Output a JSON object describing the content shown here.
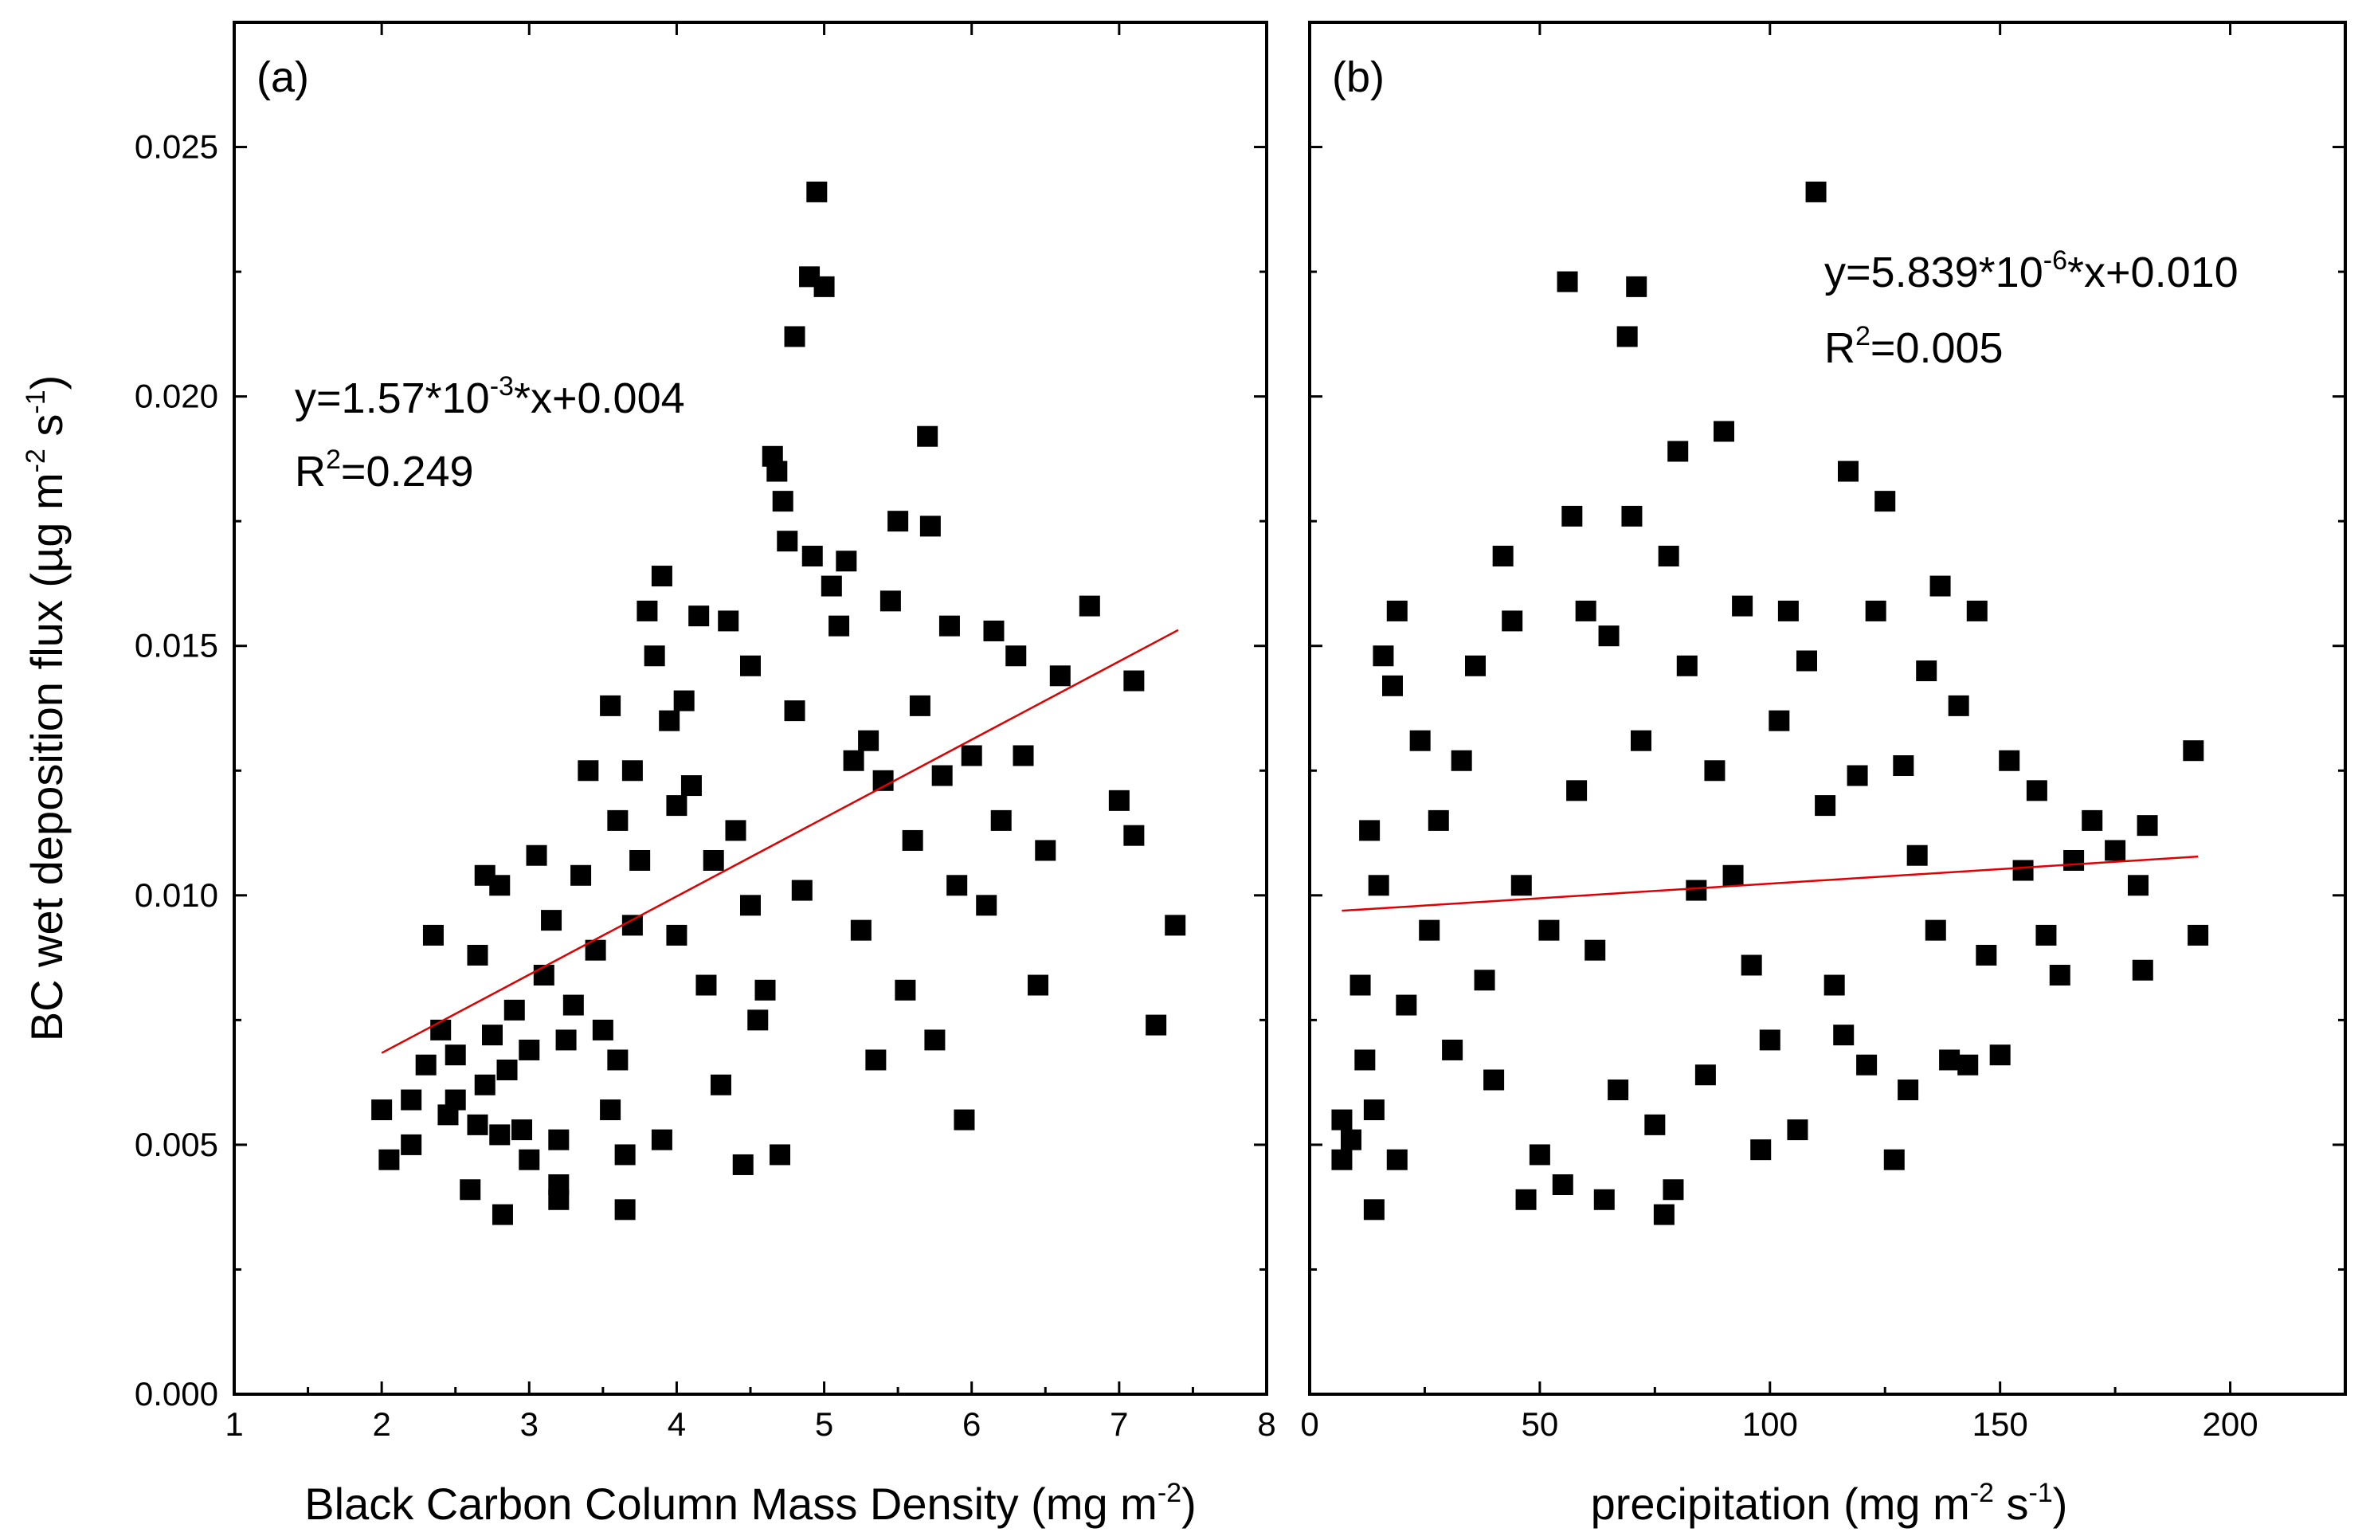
{
  "y_label": {
    "main": "BC wet deposition flux (µg m",
    "sup1": "-2",
    "mid": " s",
    "sup2": "-1",
    "end": ")"
  },
  "colors": {
    "marker": "#000000",
    "fit_line": "#e00000",
    "axes": "#000000",
    "background": "#ffffff"
  },
  "chart_data": [
    {
      "type": "scatter",
      "panel_label": "(a)",
      "xlabel": {
        "main": "Black Carbon Column Mass Density (mg m",
        "sup": "-2",
        "end": ")"
      },
      "xlim": [
        1,
        8
      ],
      "ylim": [
        0.0,
        0.0275
      ],
      "x_ticks": [
        1,
        2,
        3,
        4,
        5,
        6,
        7,
        8
      ],
      "x_tick_labels": [
        "1",
        "2",
        "3",
        "4",
        "5",
        "6",
        "7",
        "8"
      ],
      "y_ticks": [
        0.0,
        0.005,
        0.01,
        0.015,
        0.02,
        0.025
      ],
      "y_tick_labels": [
        "0.000",
        "0.005",
        "0.010",
        "0.015",
        "0.020",
        "0.025"
      ],
      "equation": {
        "pre": "y=1.57*10",
        "sup": "-3",
        "post": "*x+0.004"
      },
      "r2": {
        "pre": "R",
        "sup": "2",
        "post": "=0.249"
      },
      "fit": {
        "slope": 0.00157,
        "intercept": 0.0037,
        "x_range": [
          2.0,
          7.4
        ]
      },
      "points": [
        [
          2.0,
          0.0057
        ],
        [
          2.05,
          0.0047
        ],
        [
          2.2,
          0.0059
        ],
        [
          2.2,
          0.005
        ],
        [
          2.3,
          0.0066
        ],
        [
          2.35,
          0.0092
        ],
        [
          2.4,
          0.0073
        ],
        [
          2.45,
          0.0056
        ],
        [
          2.5,
          0.0068
        ],
        [
          2.5,
          0.0059
        ],
        [
          2.6,
          0.0041
        ],
        [
          2.65,
          0.0054
        ],
        [
          2.65,
          0.0088
        ],
        [
          2.7,
          0.0104
        ],
        [
          2.7,
          0.0062
        ],
        [
          2.75,
          0.0072
        ],
        [
          2.8,
          0.0102
        ],
        [
          2.8,
          0.0052
        ],
        [
          2.82,
          0.0036
        ],
        [
          2.85,
          0.0065
        ],
        [
          2.9,
          0.0077
        ],
        [
          2.95,
          0.0053
        ],
        [
          3.0,
          0.0047
        ],
        [
          3.0,
          0.0069
        ],
        [
          3.05,
          0.0108
        ],
        [
          3.1,
          0.0084
        ],
        [
          3.15,
          0.0095
        ],
        [
          3.2,
          0.0042
        ],
        [
          3.2,
          0.0039
        ],
        [
          3.2,
          0.0051
        ],
        [
          3.25,
          0.0071
        ],
        [
          3.3,
          0.0078
        ],
        [
          3.35,
          0.0104
        ],
        [
          3.4,
          0.0125
        ],
        [
          3.45,
          0.0089
        ],
        [
          3.5,
          0.0073
        ],
        [
          3.55,
          0.0138
        ],
        [
          3.55,
          0.0057
        ],
        [
          3.6,
          0.0067
        ],
        [
          3.6,
          0.0115
        ],
        [
          3.65,
          0.0037
        ],
        [
          3.65,
          0.0048
        ],
        [
          3.7,
          0.0094
        ],
        [
          3.7,
          0.0125
        ],
        [
          3.75,
          0.0107
        ],
        [
          3.8,
          0.0157
        ],
        [
          3.85,
          0.0148
        ],
        [
          3.9,
          0.0164
        ],
        [
          3.9,
          0.0051
        ],
        [
          3.95,
          0.0135
        ],
        [
          4.0,
          0.0118
        ],
        [
          4.0,
          0.0092
        ],
        [
          4.05,
          0.0139
        ],
        [
          4.1,
          0.0122
        ],
        [
          4.15,
          0.0156
        ],
        [
          4.2,
          0.0082
        ],
        [
          4.25,
          0.0107
        ],
        [
          4.3,
          0.0062
        ],
        [
          4.35,
          0.0155
        ],
        [
          4.4,
          0.0113
        ],
        [
          4.45,
          0.0046
        ],
        [
          4.5,
          0.0146
        ],
        [
          4.5,
          0.0098
        ],
        [
          4.55,
          0.0075
        ],
        [
          4.6,
          0.0081
        ],
        [
          4.65,
          0.0188
        ],
        [
          4.68,
          0.0185
        ],
        [
          4.7,
          0.0048
        ],
        [
          4.72,
          0.0179
        ],
        [
          4.75,
          0.0171
        ],
        [
          4.8,
          0.0212
        ],
        [
          4.8,
          0.0137
        ],
        [
          4.85,
          0.0101
        ],
        [
          4.9,
          0.0224
        ],
        [
          4.92,
          0.0168
        ],
        [
          4.95,
          0.0241
        ],
        [
          5.0,
          0.0222
        ],
        [
          5.05,
          0.0162
        ],
        [
          5.1,
          0.0154
        ],
        [
          5.15,
          0.0167
        ],
        [
          5.2,
          0.0127
        ],
        [
          5.25,
          0.0093
        ],
        [
          5.3,
          0.0131
        ],
        [
          5.35,
          0.0067
        ],
        [
          5.4,
          0.0123
        ],
        [
          5.45,
          0.0159
        ],
        [
          5.5,
          0.0175
        ],
        [
          5.55,
          0.0081
        ],
        [
          5.6,
          0.0111
        ],
        [
          5.65,
          0.0138
        ],
        [
          5.7,
          0.0192
        ],
        [
          5.72,
          0.0174
        ],
        [
          5.75,
          0.0071
        ],
        [
          5.8,
          0.0124
        ],
        [
          5.85,
          0.0154
        ],
        [
          5.9,
          0.0102
        ],
        [
          5.95,
          0.0055
        ],
        [
          6.0,
          0.0128
        ],
        [
          6.1,
          0.0098
        ],
        [
          6.15,
          0.0153
        ],
        [
          6.2,
          0.0115
        ],
        [
          6.3,
          0.0148
        ],
        [
          6.35,
          0.0128
        ],
        [
          6.45,
          0.0082
        ],
        [
          6.5,
          0.0109
        ],
        [
          6.6,
          0.0144
        ],
        [
          6.8,
          0.0158
        ],
        [
          7.0,
          0.0119
        ],
        [
          7.1,
          0.0143
        ],
        [
          7.1,
          0.0112
        ],
        [
          7.25,
          0.0074
        ],
        [
          7.38,
          0.0094
        ]
      ]
    },
    {
      "type": "scatter",
      "panel_label": "(b)",
      "xlabel": {
        "main": "precipitation (mg m",
        "sup1": "-2",
        "mid": " s",
        "sup2": "-1",
        "end": ")"
      },
      "xlim": [
        0,
        225
      ],
      "ylim": [
        0.0,
        0.0275
      ],
      "x_ticks": [
        0,
        50,
        100,
        150,
        200
      ],
      "x_tick_labels": [
        "0",
        "50",
        "100",
        "150",
        "200"
      ],
      "y_ticks": [
        0.0,
        0.005,
        0.01,
        0.015,
        0.02,
        0.025
      ],
      "equation": {
        "pre": "y=5.839*10",
        "sup": "-6",
        "post": "*x+0.010"
      },
      "r2": {
        "pre": "R",
        "sup": "2",
        "post": "=0.005"
      },
      "fit": {
        "slope": 5.839e-06,
        "intercept": 0.00965,
        "x_range": [
          7,
          193
        ]
      },
      "points": [
        [
          7,
          0.0047
        ],
        [
          7,
          0.0055
        ],
        [
          9,
          0.0051
        ],
        [
          11,
          0.0082
        ],
        [
          12,
          0.0067
        ],
        [
          13,
          0.0113
        ],
        [
          14,
          0.0037
        ],
        [
          14,
          0.0057
        ],
        [
          15,
          0.0102
        ],
        [
          16,
          0.0148
        ],
        [
          18,
          0.0142
        ],
        [
          19,
          0.0157
        ],
        [
          19,
          0.0047
        ],
        [
          21,
          0.0078
        ],
        [
          24,
          0.0131
        ],
        [
          26,
          0.0093
        ],
        [
          28,
          0.0115
        ],
        [
          31,
          0.0069
        ],
        [
          33,
          0.0127
        ],
        [
          36,
          0.0146
        ],
        [
          38,
          0.0083
        ],
        [
          40,
          0.0063
        ],
        [
          42,
          0.0168
        ],
        [
          44,
          0.0155
        ],
        [
          46,
          0.0102
        ],
        [
          47,
          0.0039
        ],
        [
          50,
          0.0048
        ],
        [
          52,
          0.0093
        ],
        [
          55,
          0.0042
        ],
        [
          56,
          0.0223
        ],
        [
          57,
          0.0176
        ],
        [
          58,
          0.0121
        ],
        [
          60,
          0.0157
        ],
        [
          62,
          0.0089
        ],
        [
          64,
          0.0039
        ],
        [
          65,
          0.0152
        ],
        [
          67,
          0.0061
        ],
        [
          69,
          0.0212
        ],
        [
          70,
          0.0176
        ],
        [
          71,
          0.0222
        ],
        [
          72,
          0.0131
        ],
        [
          75,
          0.0054
        ],
        [
          77,
          0.0036
        ],
        [
          78,
          0.0168
        ],
        [
          79,
          0.0041
        ],
        [
          80,
          0.0189
        ],
        [
          82,
          0.0146
        ],
        [
          84,
          0.0101
        ],
        [
          86,
          0.0064
        ],
        [
          88,
          0.0125
        ],
        [
          90,
          0.0193
        ],
        [
          92,
          0.0104
        ],
        [
          94,
          0.0158
        ],
        [
          96,
          0.0086
        ],
        [
          98,
          0.0049
        ],
        [
          100,
          0.0071
        ],
        [
          102,
          0.0135
        ],
        [
          104,
          0.0157
        ],
        [
          106,
          0.0053
        ],
        [
          108,
          0.0147
        ],
        [
          110,
          0.0241
        ],
        [
          112,
          0.0118
        ],
        [
          114,
          0.0082
        ],
        [
          116,
          0.0072
        ],
        [
          117,
          0.0185
        ],
        [
          119,
          0.0124
        ],
        [
          121,
          0.0066
        ],
        [
          123,
          0.0157
        ],
        [
          125,
          0.0179
        ],
        [
          127,
          0.0047
        ],
        [
          129,
          0.0126
        ],
        [
          130,
          0.0061
        ],
        [
          132,
          0.0108
        ],
        [
          134,
          0.0145
        ],
        [
          136,
          0.0093
        ],
        [
          137,
          0.0162
        ],
        [
          139,
          0.0067
        ],
        [
          141,
          0.0138
        ],
        [
          143,
          0.0066
        ],
        [
          145,
          0.0157
        ],
        [
          147,
          0.0088
        ],
        [
          150,
          0.0068
        ],
        [
          152,
          0.0127
        ],
        [
          155,
          0.0105
        ],
        [
          158,
          0.0121
        ],
        [
          160,
          0.0092
        ],
        [
          163,
          0.0084
        ],
        [
          166,
          0.0107
        ],
        [
          170,
          0.0115
        ],
        [
          175,
          0.0109
        ],
        [
          180,
          0.0102
        ],
        [
          181,
          0.0085
        ],
        [
          182,
          0.0114
        ],
        [
          192,
          0.0129
        ],
        [
          193,
          0.0092
        ]
      ]
    }
  ]
}
